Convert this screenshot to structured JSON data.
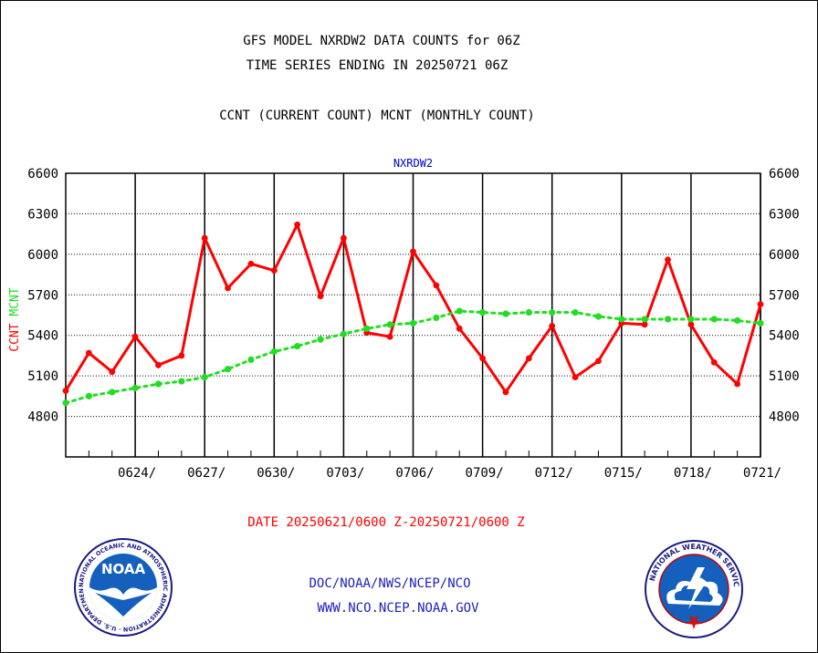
{
  "header": {
    "title_line1": "GFS MODEL NXRDW2 DATA COUNTS for 06Z",
    "title_line2": "TIME SERIES ENDING IN 20250721 06Z",
    "subtitle": "CCNT (CURRENT COUNT) MCNT (MONTHLY COUNT)"
  },
  "footer": {
    "date_range": "DATE 20250621/0600 Z-20250721/0600 Z",
    "org_path": "DOC/NOAA/NWS/NCEP/NCO",
    "website": "WWW.NCO.NCEP.NOAA.GOV"
  },
  "logos": {
    "noaa_text": "NOAA",
    "noaa_ring": "NATIONAL OCEANIC AND ATMOSPHERIC ADMINISTRATION · U.S. DEPARTMENT OF COMMERCE",
    "nws_ring": "NATIONAL WEATHER SERVICE"
  },
  "colors": {
    "ccnt": "#ff0000",
    "mcnt": "#22dd22",
    "panel_title": "#0000cc",
    "footer_blue": "#2020c0"
  },
  "chart_data": {
    "type": "line",
    "panel_title": "NXRDW2",
    "ylabel_ccnt": "CCNT",
    "ylabel_mcnt": "MCNT",
    "ylim": [
      4500,
      6600
    ],
    "yticks": [
      4800,
      5100,
      5400,
      5700,
      6000,
      6300,
      6600
    ],
    "xlim": [
      0,
      30
    ],
    "xticks": [
      {
        "day": 3,
        "label": "0624/"
      },
      {
        "day": 6,
        "label": "0627/"
      },
      {
        "day": 9,
        "label": "0630/"
      },
      {
        "day": 12,
        "label": "0703/"
      },
      {
        "day": 15,
        "label": "0706/"
      },
      {
        "day": 18,
        "label": "0709/"
      },
      {
        "day": 21,
        "label": "0712/"
      },
      {
        "day": 24,
        "label": "0715/"
      },
      {
        "day": 27,
        "label": "0718/"
      },
      {
        "day": 30,
        "label": "0721/"
      }
    ],
    "series": [
      {
        "name": "CCNT",
        "style": "solid",
        "x": [
          0,
          1,
          2,
          3,
          4,
          5,
          6,
          7,
          8,
          9,
          10,
          11,
          12,
          13,
          14,
          15,
          16,
          17,
          18,
          19,
          20,
          21,
          22,
          23,
          24,
          25,
          26,
          27,
          28,
          29,
          30
        ],
        "values": [
          4990,
          5270,
          5130,
          5390,
          5180,
          5250,
          6120,
          5750,
          5930,
          5880,
          6220,
          5690,
          6120,
          5420,
          5390,
          6020,
          5770,
          5450,
          5230,
          4980,
          5230,
          5470,
          5090,
          5210,
          5490,
          5480,
          5960,
          5480,
          5200,
          5040,
          5630
        ]
      },
      {
        "name": "MCNT",
        "style": "dotted",
        "x": [
          0,
          1,
          2,
          3,
          4,
          5,
          6,
          7,
          8,
          9,
          10,
          11,
          12,
          13,
          14,
          15,
          16,
          17,
          18,
          19,
          20,
          21,
          22,
          23,
          24,
          25,
          26,
          27,
          28,
          29,
          30
        ],
        "values": [
          4900,
          4950,
          4980,
          5010,
          5040,
          5060,
          5090,
          5150,
          5220,
          5280,
          5320,
          5370,
          5410,
          5450,
          5480,
          5490,
          5530,
          5580,
          5570,
          5560,
          5570,
          5570,
          5570,
          5540,
          5520,
          5520,
          5520,
          5520,
          5520,
          5510,
          5490
        ]
      }
    ]
  }
}
